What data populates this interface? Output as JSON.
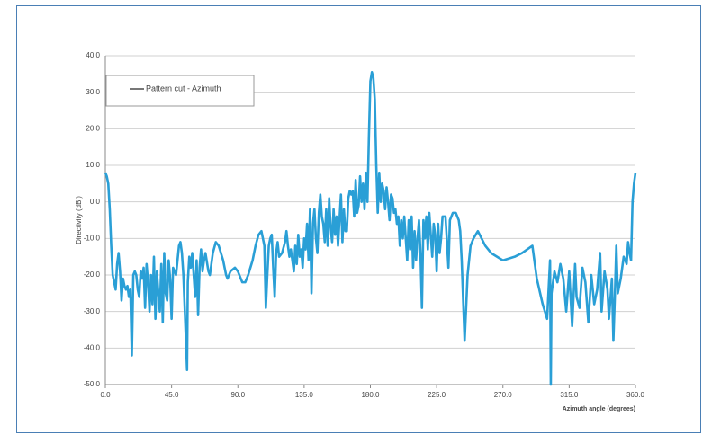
{
  "chart_data": {
    "type": "line",
    "x_label": "Azimuth angle (degrees)",
    "y_label": "Directivity (dBi)",
    "xlim": [
      0,
      360
    ],
    "ylim": [
      -50,
      40
    ],
    "xticks": [
      {
        "value": 0,
        "label": "0.0"
      },
      {
        "value": 45,
        "label": "45.0"
      },
      {
        "value": 90,
        "label": "90.0"
      },
      {
        "value": 135,
        "label": "135.0"
      },
      {
        "value": 180,
        "label": "180.0"
      },
      {
        "value": 225,
        "label": "225.0"
      },
      {
        "value": 270,
        "label": "270.0"
      },
      {
        "value": 315,
        "label": "315.0"
      },
      {
        "value": 360,
        "label": "360.0"
      }
    ],
    "yticks": [
      {
        "value": -50,
        "label": "-50.0"
      },
      {
        "value": -40,
        "label": "-40.0"
      },
      {
        "value": -30,
        "label": "-30.0"
      },
      {
        "value": -20,
        "label": "-20.0"
      },
      {
        "value": -10,
        "label": "-10.0"
      },
      {
        "value": 0,
        "label": "0.0"
      },
      {
        "value": 10,
        "label": "10.0"
      },
      {
        "value": 20,
        "label": "20.0"
      },
      {
        "value": 30,
        "label": "30.0"
      },
      {
        "value": 40,
        "label": "40.0"
      }
    ],
    "grid": true,
    "legend": "upper left",
    "x": [
      0,
      1,
      2,
      3,
      4,
      5,
      6,
      7,
      8,
      9,
      10,
      11,
      12,
      13,
      14,
      15,
      16,
      17,
      18,
      19,
      20,
      21,
      22,
      23,
      24,
      25,
      26,
      27,
      28,
      29,
      30,
      31,
      32,
      33,
      34,
      35,
      36,
      37,
      38,
      39,
      40,
      41,
      42,
      43,
      44,
      45,
      46,
      48,
      50,
      51,
      52,
      53,
      54,
      55.5,
      56,
      57,
      58,
      59,
      60,
      61,
      62,
      63,
      64,
      65,
      66,
      67,
      68,
      70,
      71,
      73,
      75,
      77,
      80,
      82,
      83,
      85,
      88,
      90,
      93,
      95,
      97,
      100,
      102,
      104,
      106,
      108,
      109,
      110,
      111,
      112,
      113,
      114,
      115,
      116,
      117,
      118,
      120,
      122,
      123,
      124,
      125,
      126,
      127,
      128,
      129,
      130,
      131,
      132,
      133,
      134,
      135,
      136,
      137,
      138,
      139,
      140,
      141,
      142,
      143,
      144,
      145,
      146,
      147,
      148,
      149,
      150,
      151,
      152,
      153,
      154,
      155,
      156,
      157,
      158,
      159,
      160,
      161,
      162,
      163,
      164,
      165,
      166,
      167,
      168,
      169,
      170,
      171,
      172,
      173,
      174,
      175,
      176,
      177,
      178,
      179,
      180,
      181,
      182,
      183,
      184,
      185,
      186,
      187,
      188,
      189,
      190,
      191,
      192,
      193,
      194,
      195,
      196,
      197,
      198,
      199,
      200,
      201,
      202,
      203,
      204,
      205,
      206,
      207,
      208,
      209,
      210,
      211,
      212,
      213,
      214,
      215,
      216,
      217,
      218,
      219,
      220,
      221,
      222,
      223,
      224,
      225,
      226,
      227,
      228,
      229,
      231,
      233,
      234,
      236,
      238,
      240,
      241,
      242,
      244,
      246,
      248,
      250,
      253,
      258,
      262,
      270,
      278,
      283,
      290,
      293,
      297,
      300,
      302,
      302.5,
      303,
      305,
      307,
      309,
      311,
      313,
      315,
      317,
      319,
      320,
      322,
      324,
      326,
      328,
      330,
      332,
      334,
      336,
      337,
      339,
      341,
      342,
      344,
      345,
      346,
      347,
      348,
      350,
      352,
      354,
      355,
      356,
      357,
      358,
      359,
      360
    ],
    "series": [
      {
        "name": "Pattern cut - Azimuth",
        "color": "#2a9fd6",
        "values": [
          8,
          7,
          5,
          -2,
          -12,
          -20,
          -22,
          -24,
          -17,
          -14,
          -19,
          -27,
          -21,
          -23,
          -24,
          -23,
          -26,
          -24,
          -42,
          -20,
          -19,
          -20,
          -24,
          -26,
          -19,
          -21,
          -18,
          -29,
          -17,
          -22,
          -30,
          -20,
          -28,
          -15,
          -32,
          -19,
          -25,
          -30,
          -17,
          -33,
          -14,
          -25,
          -27,
          -16,
          -21,
          -32,
          -18,
          -20,
          -12,
          -11,
          -14,
          -20,
          -30,
          -46,
          -22,
          -15,
          -18,
          -14,
          -20,
          -26,
          -16,
          -31,
          -18,
          -13,
          -19,
          -16,
          -14,
          -19,
          -20,
          -14,
          -11,
          -12,
          -16,
          -20,
          -21,
          -19,
          -18,
          -19,
          -22,
          -22,
          -20,
          -16,
          -12,
          -9,
          -8,
          -12,
          -29,
          -20,
          -12,
          -10,
          -9,
          -18,
          -26,
          -14,
          -11,
          -15,
          -14,
          -11,
          -8,
          -12,
          -15,
          -13,
          -16,
          -19,
          -12,
          -17,
          -9,
          -15,
          -13,
          -18,
          -10,
          -13,
          -6,
          -16,
          -2,
          -25,
          -6,
          -2,
          -10,
          -14,
          -3,
          2,
          -4,
          -6,
          -11,
          -2,
          -12,
          1,
          -7,
          -11,
          -2,
          -9,
          -4,
          -12,
          -5,
          2,
          -11,
          -2,
          -8,
          -8,
          1,
          3,
          2,
          3,
          -4,
          6,
          -3,
          -1,
          7,
          0,
          5,
          -2,
          8,
          0,
          18,
          33,
          35.5,
          34,
          28,
          10,
          -3,
          8,
          0,
          5,
          3,
          -2,
          4,
          0,
          -5,
          2,
          1,
          -3,
          -2,
          -6,
          -4,
          -12,
          -5,
          -10,
          -4,
          -10,
          -16,
          -5,
          -13,
          -4,
          -18,
          -8,
          -16,
          -10,
          -5,
          -14,
          -29,
          -5,
          -10,
          -4,
          -13,
          -3,
          -9,
          -15,
          -6,
          -9,
          -19,
          -6,
          -14,
          -10,
          -4,
          -4,
          -18,
          -5,
          -3,
          -3,
          -5,
          -8,
          -16,
          -38,
          -20,
          -12,
          -10,
          -8,
          -12,
          -14,
          -16,
          -15,
          -14,
          -12,
          -21,
          -28,
          -32,
          -16,
          -50,
          -25,
          -19,
          -22,
          -17,
          -21,
          -30,
          -19,
          -34,
          -17,
          -26,
          -29,
          -18,
          -22,
          -33,
          -20,
          -28,
          -24,
          -14,
          -30,
          -19,
          -24,
          -32,
          -21,
          -38,
          -26,
          -12,
          -25,
          -21,
          -15,
          -17,
          -11,
          -14,
          -16,
          0,
          5,
          8
        ]
      }
    ]
  }
}
